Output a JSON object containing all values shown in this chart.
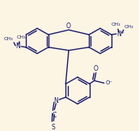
{
  "bg_color": "#fcf5e4",
  "lc": "#1a1a6e",
  "lw": 1.0,
  "fs": 5.5,
  "sfs": 5.0,
  "dbo": 2.3,
  "dbf": 0.14,
  "figsize": [
    1.72,
    1.63
  ],
  "dpi": 100,
  "xA": [
    46,
    52
  ],
  "xB": [
    124,
    52
  ],
  "xD": [
    96,
    115
  ],
  "R_xan": 16,
  "R_benz": 17
}
